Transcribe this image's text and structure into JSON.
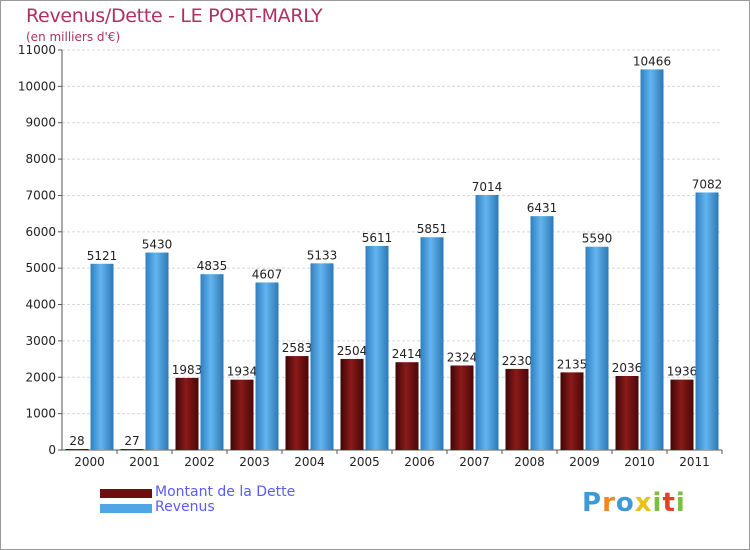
{
  "header": {
    "title": "Revenus/Dette - LE PORT-MARLY",
    "subtitle": "(en milliers d'€)"
  },
  "legend": {
    "items": [
      {
        "label": "Montant de la Dette",
        "color": "#6b0f0f"
      },
      {
        "label": "Revenus",
        "color": "#4ea6e6"
      }
    ]
  },
  "logo": {
    "letters": [
      {
        "ch": "P",
        "color": "#3e9ad6"
      },
      {
        "ch": "r",
        "color": "#f08a1c"
      },
      {
        "ch": "o",
        "color": "#3e9ad6"
      },
      {
        "ch": "x",
        "color": "#e8c21a"
      },
      {
        "ch": "i",
        "color": "#7cbf3a"
      },
      {
        "ch": "t",
        "color": "#e0432b"
      },
      {
        "ch": "i",
        "color": "#7cbf3a"
      }
    ]
  },
  "chart_data": {
    "type": "bar",
    "title": "Revenus/Dette - LE PORT-MARLY",
    "subtitle": "(en milliers d'€)",
    "categories": [
      "2000",
      "2001",
      "2002",
      "2003",
      "2004",
      "2005",
      "2006",
      "2007",
      "2008",
      "2009",
      "2010",
      "2011"
    ],
    "series": [
      {
        "name": "Montant de la Dette",
        "color": "#6b0f0f",
        "values": [
          28,
          27,
          1983,
          1934,
          2583,
          2504,
          2414,
          2324,
          2230,
          2135,
          2036,
          1936
        ]
      },
      {
        "name": "Revenus",
        "color": "#4ea6e6",
        "values": [
          5121,
          5430,
          4835,
          4607,
          5133,
          5611,
          5851,
          7014,
          6431,
          5590,
          10466,
          7082
        ]
      }
    ],
    "data_labels": [
      [
        "28",
        "27",
        "1983",
        "1934",
        "2583",
        "2504",
        "2414",
        "2324",
        "2230",
        "2135",
        "2036",
        "1936"
      ],
      [
        "5121",
        "5430",
        "4835",
        "4607",
        "5133",
        "5611",
        "5851",
        "7014",
        "6431",
        "5590",
        "10466",
        "7082"
      ]
    ],
    "yticks": [
      0,
      1000,
      2000,
      3000,
      4000,
      5000,
      6000,
      7000,
      8000,
      9000,
      10000,
      11000
    ],
    "ylim": [
      0,
      11000
    ],
    "grid": true,
    "legend_position": "bottom-left"
  }
}
